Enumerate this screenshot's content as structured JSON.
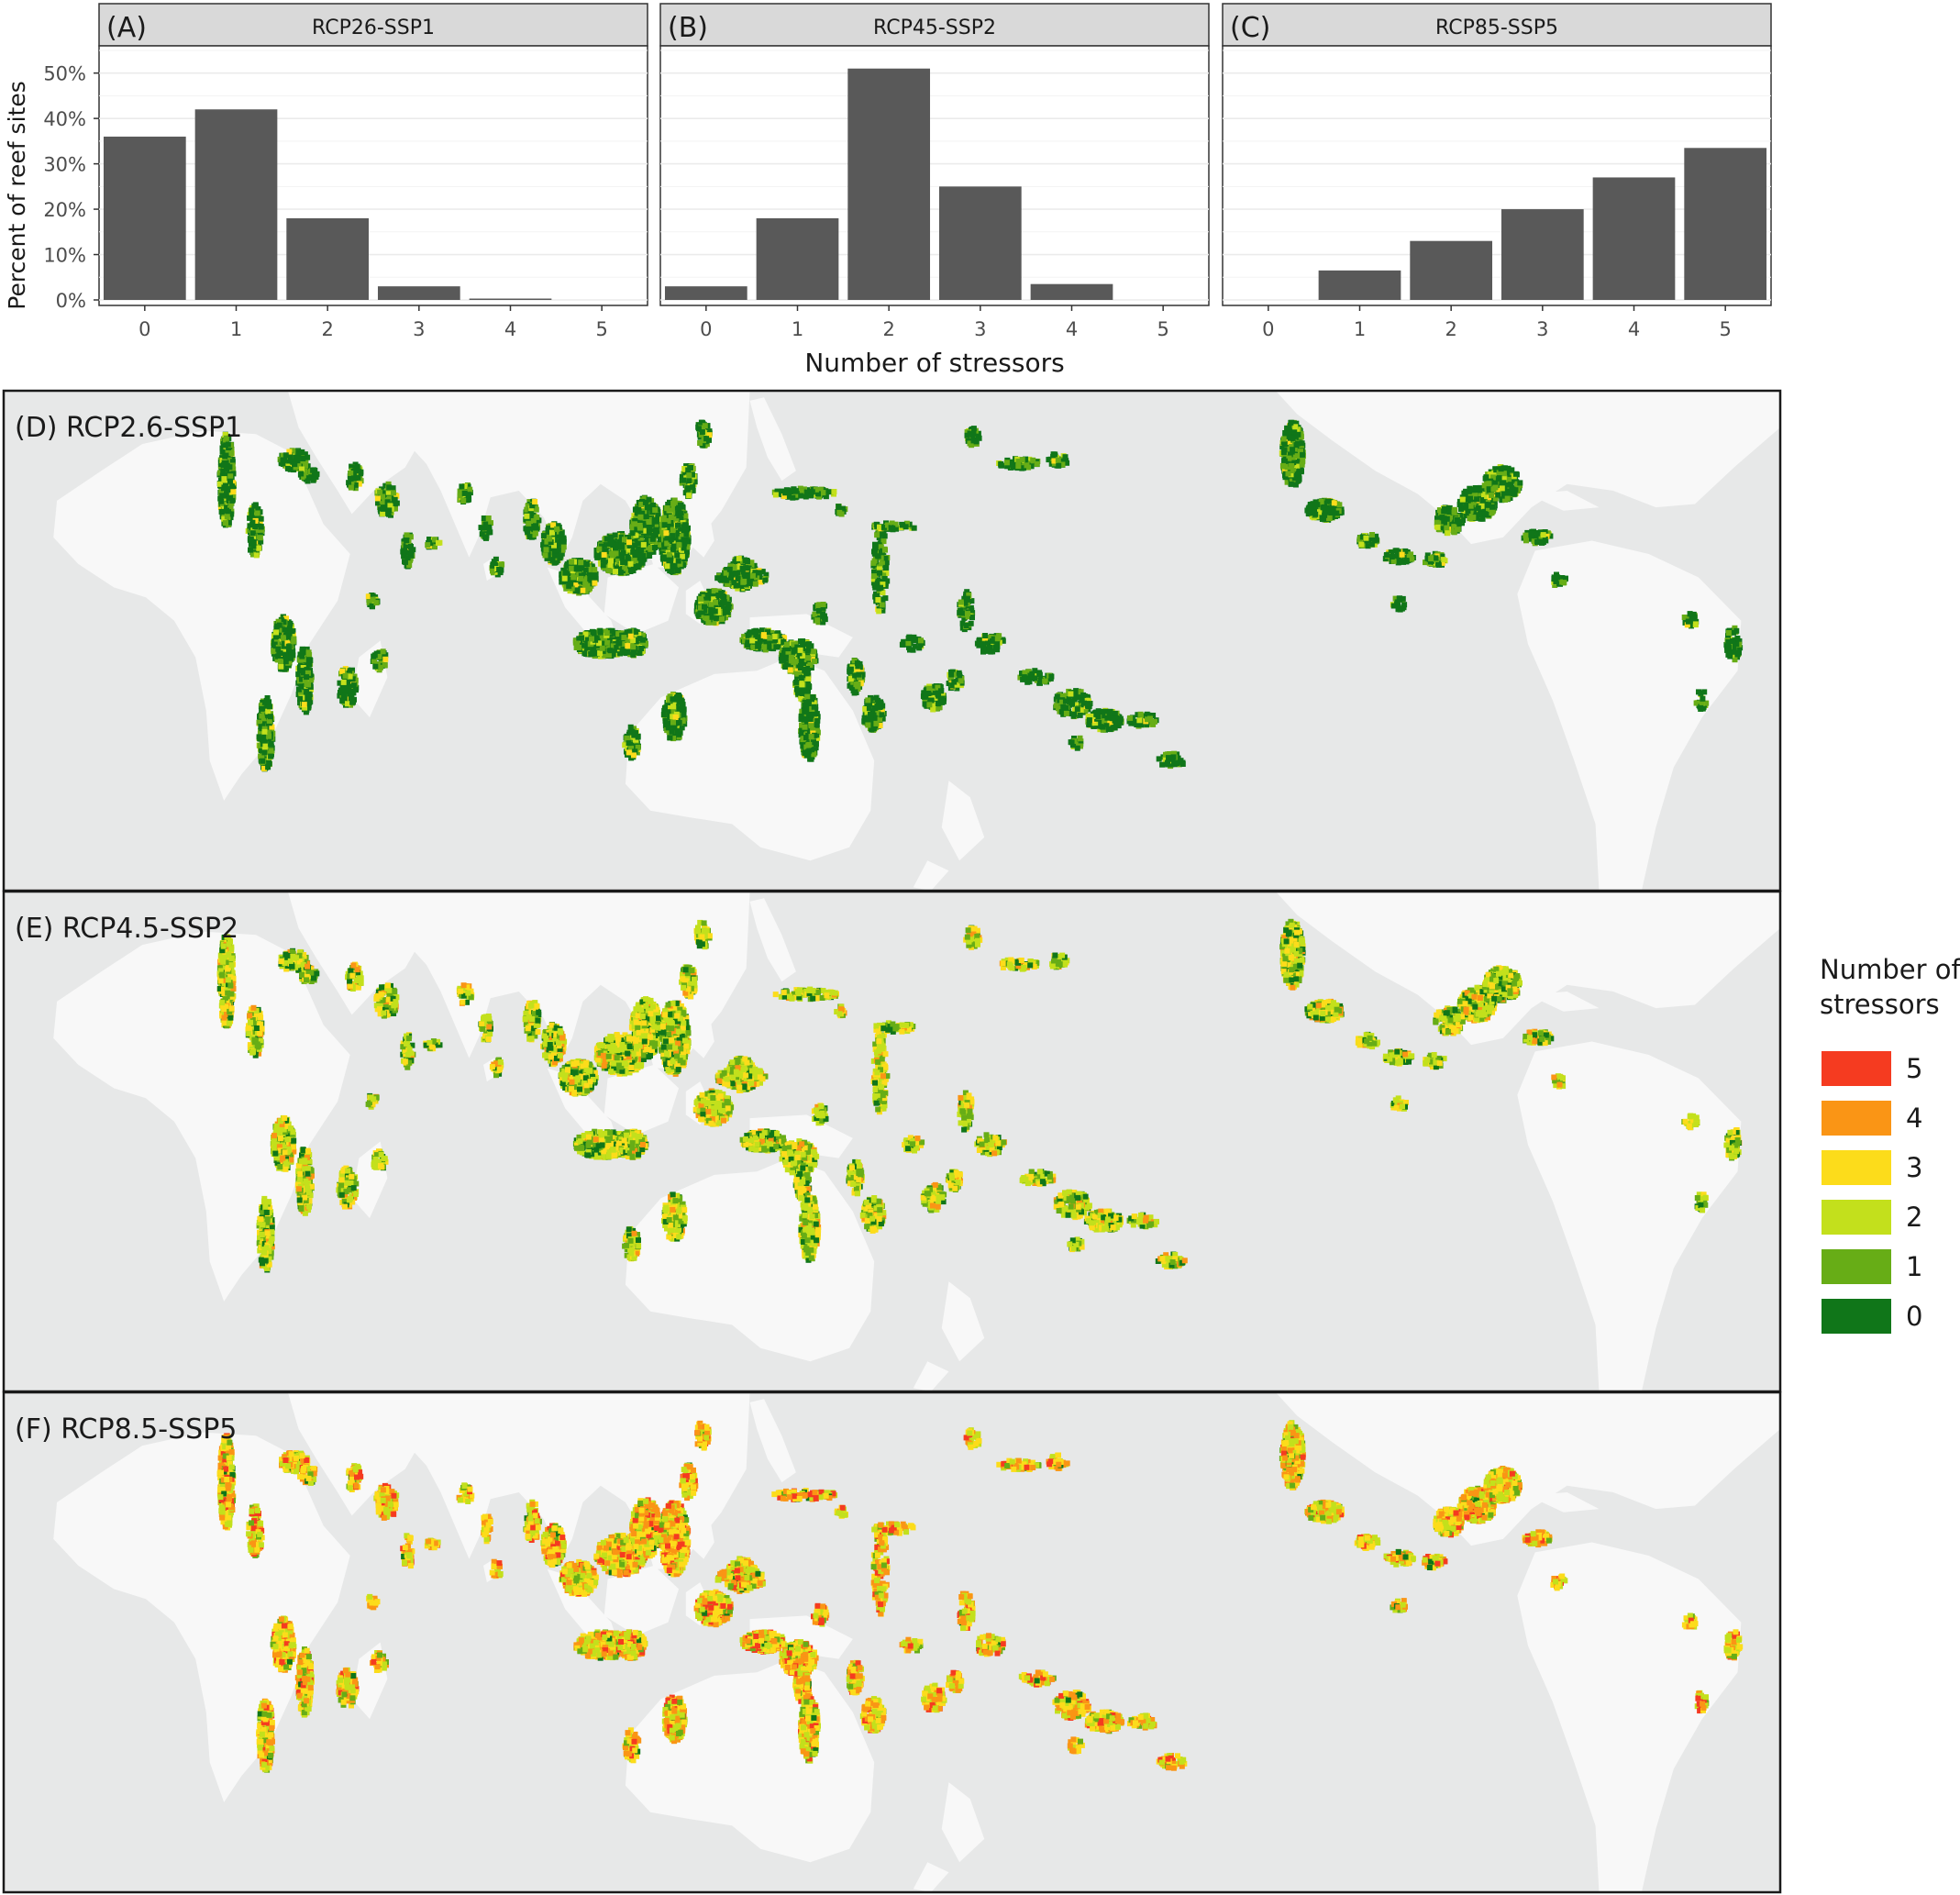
{
  "chart_data": [
    {
      "type": "bar",
      "panel_tag": "(A)",
      "strip": "RCP26-SSP1",
      "categories": [
        "0",
        "1",
        "2",
        "3",
        "4",
        "5"
      ],
      "values": [
        36,
        42,
        18,
        3,
        0.3,
        0
      ],
      "ylim": [
        0,
        50
      ]
    },
    {
      "type": "bar",
      "panel_tag": "(B)",
      "strip": "RCP45-SSP2",
      "categories": [
        "0",
        "1",
        "2",
        "3",
        "4",
        "5"
      ],
      "values": [
        3,
        18,
        51,
        25,
        3.5,
        0
      ],
      "ylim": [
        0,
        50
      ]
    },
    {
      "type": "bar",
      "panel_tag": "(C)",
      "strip": "RCP85-SSP5",
      "categories": [
        "0",
        "1",
        "2",
        "3",
        "4",
        "5"
      ],
      "values": [
        0,
        6.5,
        13,
        20,
        27,
        33.5
      ],
      "ylim": [
        0,
        50
      ]
    }
  ],
  "bar_axes": {
    "ylabel": "Percent of reef sites",
    "xlabel": "Number of stressors",
    "yticks": [
      {
        "value": 0,
        "label": "0%"
      },
      {
        "value": 10,
        "label": "10%"
      },
      {
        "value": 20,
        "label": "20%"
      },
      {
        "value": 30,
        "label": "30%"
      },
      {
        "value": 40,
        "label": "40%"
      },
      {
        "value": 50,
        "label": "50%"
      }
    ]
  },
  "maps": [
    {
      "label": "(D) RCP2.6-SSP1",
      "scenario": "low"
    },
    {
      "label": "(E) RCP4.5-SSP2",
      "scenario": "mid"
    },
    {
      "label": "(F) RCP8.5-SSP5",
      "scenario": "high"
    }
  ],
  "legend": {
    "title_line1": "Number of",
    "title_line2": "stressors",
    "items": [
      {
        "label": "5",
        "color": "#f53b20"
      },
      {
        "label": "4",
        "color": "#fa9515"
      },
      {
        "label": "3",
        "color": "#fcdc1b"
      },
      {
        "label": "2",
        "color": "#c3e01c"
      },
      {
        "label": "1",
        "color": "#67ad16"
      },
      {
        "label": "0",
        "color": "#107619"
      }
    ]
  },
  "colors": {
    "bar": "#595959",
    "strip_bg": "#d9d9d9",
    "ocean": "#e7e8e8",
    "land": "#f8f8f8"
  }
}
